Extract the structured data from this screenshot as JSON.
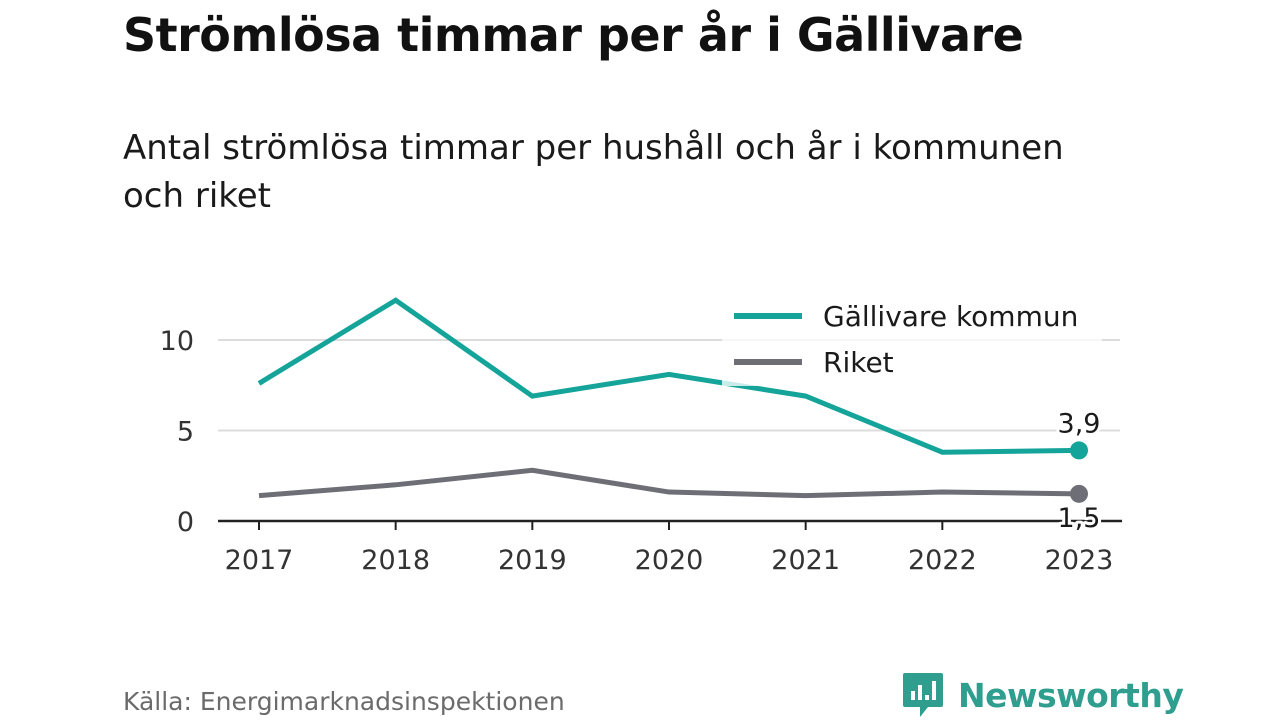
{
  "title": "Strömlösa timmar per år i Gällivare",
  "subtitle": "Antal strömlösa timmar per hushåll och år i kommunen och riket",
  "source": "Källa: Energimarknadsinspektionen",
  "brand": "Newsworthy",
  "colors": {
    "teal": "#14a49a",
    "grey": "#6e6e76",
    "grid": "#dcdcdc",
    "brand": "#2f9e8f"
  },
  "chart_data": {
    "type": "line",
    "categories": [
      "2017",
      "2018",
      "2019",
      "2020",
      "2021",
      "2022",
      "2023"
    ],
    "series": [
      {
        "name": "Gällivare kommun",
        "color": "#14a49a",
        "values": [
          7.6,
          12.2,
          6.9,
          8.1,
          6.9,
          3.8,
          3.9
        ]
      },
      {
        "name": "Riket",
        "color": "#6e6e76",
        "values": [
          1.4,
          2.0,
          2.8,
          1.6,
          1.4,
          1.6,
          1.5
        ]
      }
    ],
    "yticks": [
      "0",
      "5",
      "10"
    ],
    "ylim": [
      0,
      12.5
    ],
    "end_labels": [
      "3,9",
      "1,5"
    ],
    "legend": "top-right",
    "grid": true
  }
}
